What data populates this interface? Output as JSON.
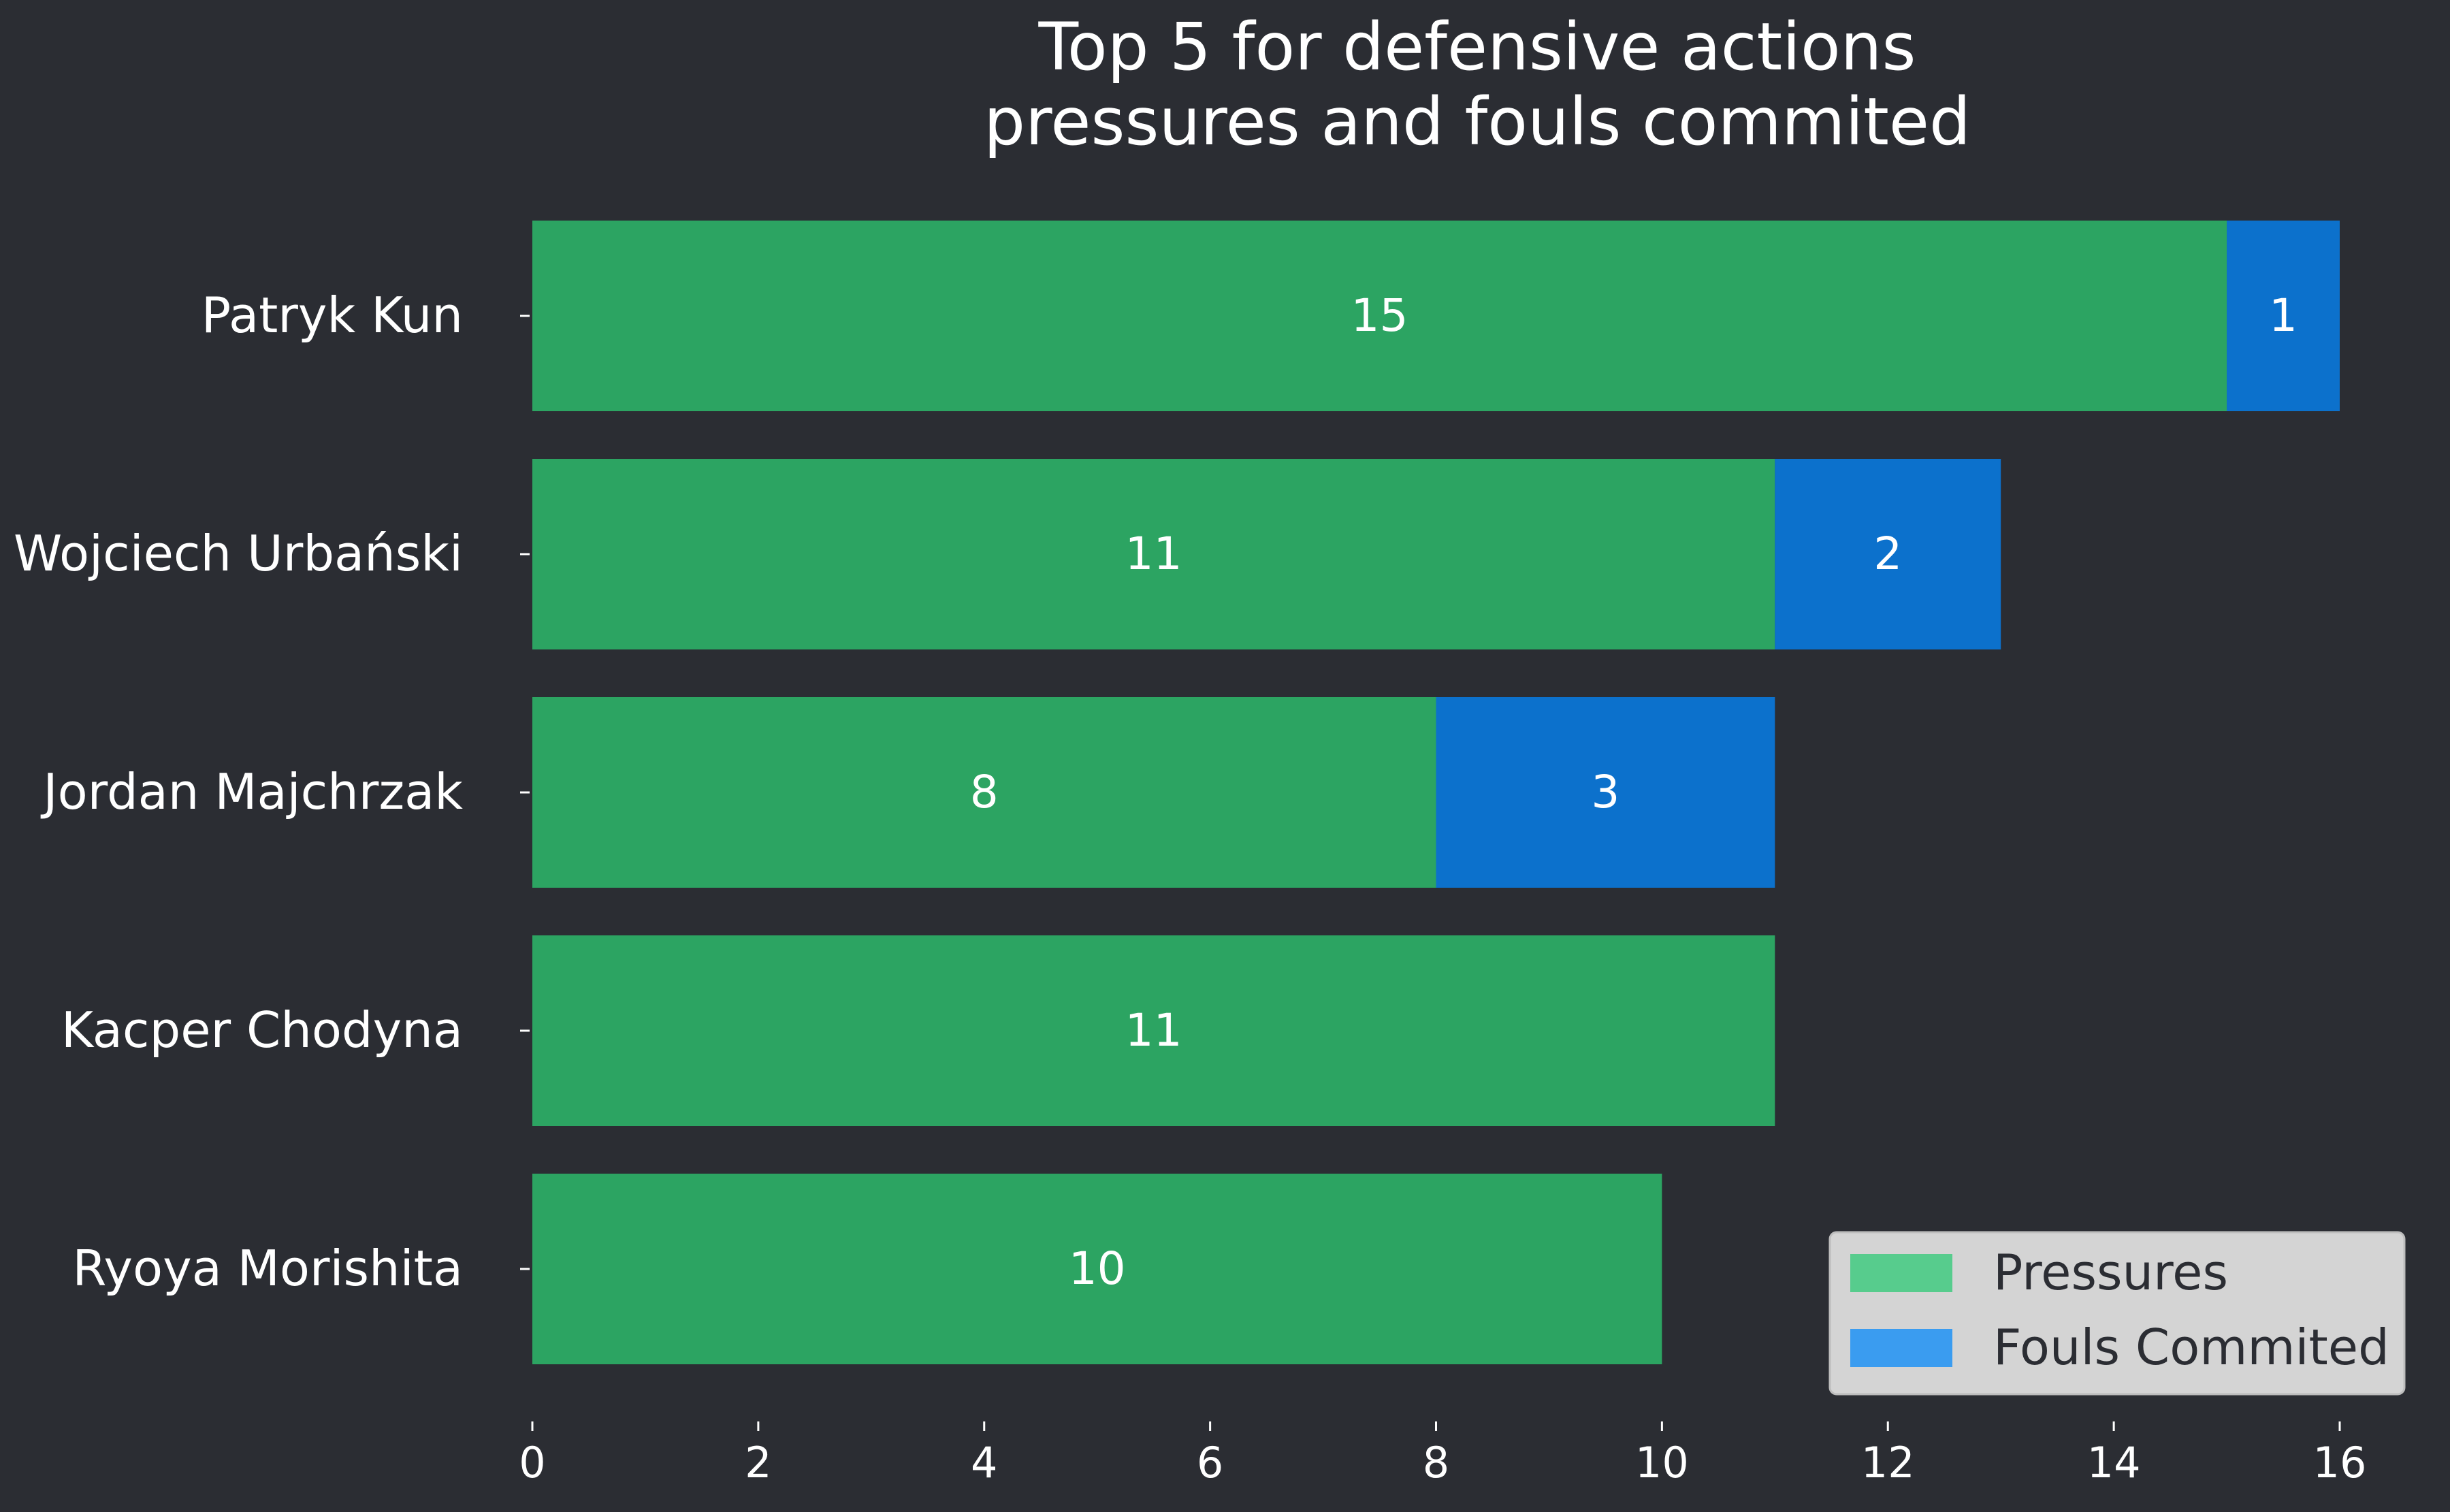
{
  "chart_data": {
    "type": "bar",
    "orientation": "horizontal",
    "stacked": true,
    "title": "Top 5 for defensive actions\npressures and fouls commited",
    "categories": [
      "Patryk Kun",
      "Wojciech Urbański",
      "Jordan Majchrzak",
      "Kacper Chodyna",
      "Ryoya Morishita"
    ],
    "series": [
      {
        "name": "Pressures",
        "values": [
          15,
          11,
          8,
          11,
          10
        ],
        "color": "#2ca462",
        "legend_color": "#57cc8d"
      },
      {
        "name": "Fouls Commited",
        "values": [
          1,
          2,
          3,
          0,
          0
        ],
        "color": "#0c71cc",
        "legend_color": "#3a9cf0"
      }
    ],
    "xlim": [
      0,
      16
    ],
    "xticks": [
      0,
      2,
      4,
      6,
      8,
      10,
      12,
      14,
      16
    ],
    "xlabel": "",
    "ylabel": "",
    "grid": false,
    "legend_position": "bottom-right",
    "background": "#2b2d33",
    "legend_background": "#d4d4d4"
  }
}
